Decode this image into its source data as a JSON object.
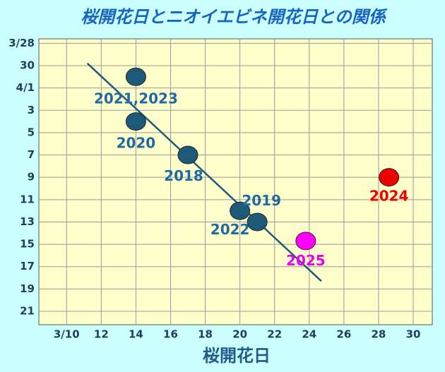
{
  "chart_data": {
    "type": "scatter",
    "title": "桜開花日とニオイエビネ開花日との関係",
    "x_label": "桜開花日",
    "x": [
      14,
      14,
      17,
      20,
      21,
      28.6,
      23.8
    ],
    "values": [
      31,
      35,
      38,
      43,
      44,
      40,
      45.7
    ],
    "point_labels": [
      "2021,2023",
      "2020",
      "2018",
      "2022",
      "2019",
      "2024",
      "2025"
    ],
    "colors": [
      "#1d5a7a",
      "#1d5a7a",
      "#1d5a7a",
      "#1d5a7a",
      "#1d5a7a",
      "#ee0000",
      "#ff00ff"
    ],
    "label_colors": [
      "#1f6aa5",
      "#1f6aa5",
      "#1f6aa5",
      "#1f6aa5",
      "#1f6aa5",
      "#ee0000",
      "#ee00ee"
    ],
    "trendline": {
      "x": [
        11.2,
        24.7
      ],
      "y": [
        29.8,
        49.3
      ],
      "color": "#1d5a7a"
    },
    "xlim": [
      8.4,
      31.1
    ],
    "ylim": [
      27.6,
      53.2
    ],
    "y_inverted": true,
    "xticks": [
      {
        "value": 10,
        "label": "3/10"
      },
      12,
      14,
      16,
      18,
      20,
      22,
      24,
      26,
      28,
      30
    ],
    "yticks": [
      {
        "value": 28,
        "label": "3/28"
      },
      30,
      {
        "value": 32,
        "label": "4/1"
      },
      {
        "value": 34,
        "label": "3"
      },
      {
        "value": 36,
        "label": "5"
      },
      {
        "value": 38,
        "label": "7"
      },
      {
        "value": 40,
        "label": "9"
      },
      {
        "value": 42,
        "label": "11"
      },
      {
        "value": 44,
        "label": "13"
      },
      {
        "value": 46,
        "label": "15"
      },
      {
        "value": 48,
        "label": "17"
      },
      {
        "value": 50,
        "label": "19"
      },
      {
        "value": 52,
        "label": "21"
      }
    ],
    "grid": true
  }
}
